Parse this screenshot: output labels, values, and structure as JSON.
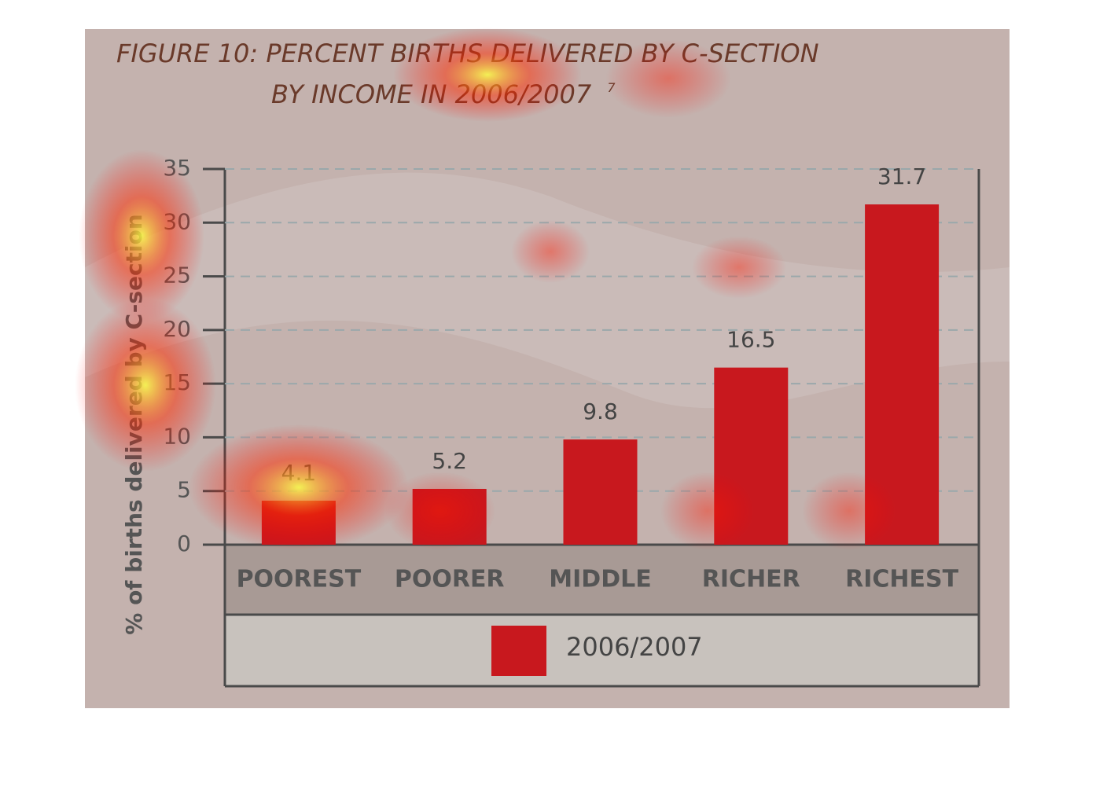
{
  "chart_data": {
    "type": "bar",
    "title_lines": [
      "FIGURE 10: PERCENT BIRTHS DELIVERED BY C-SECTION",
      "BY INCOME IN 2006/2007"
    ],
    "title_note": "7",
    "y_label": "% of births delivered by C-section",
    "categories": [
      "POOREST",
      "POORER",
      "MIDDLE",
      "RICHER",
      "RICHEST"
    ],
    "series": [
      {
        "name": "2006/2007",
        "color": "#c8181e",
        "values": [
          4.1,
          5.2,
          9.8,
          16.5,
          31.7
        ]
      }
    ],
    "ylim": [
      0,
      35
    ],
    "yticks": [
      0,
      5,
      10,
      15,
      20,
      25,
      30,
      35
    ],
    "grid": true
  }
}
